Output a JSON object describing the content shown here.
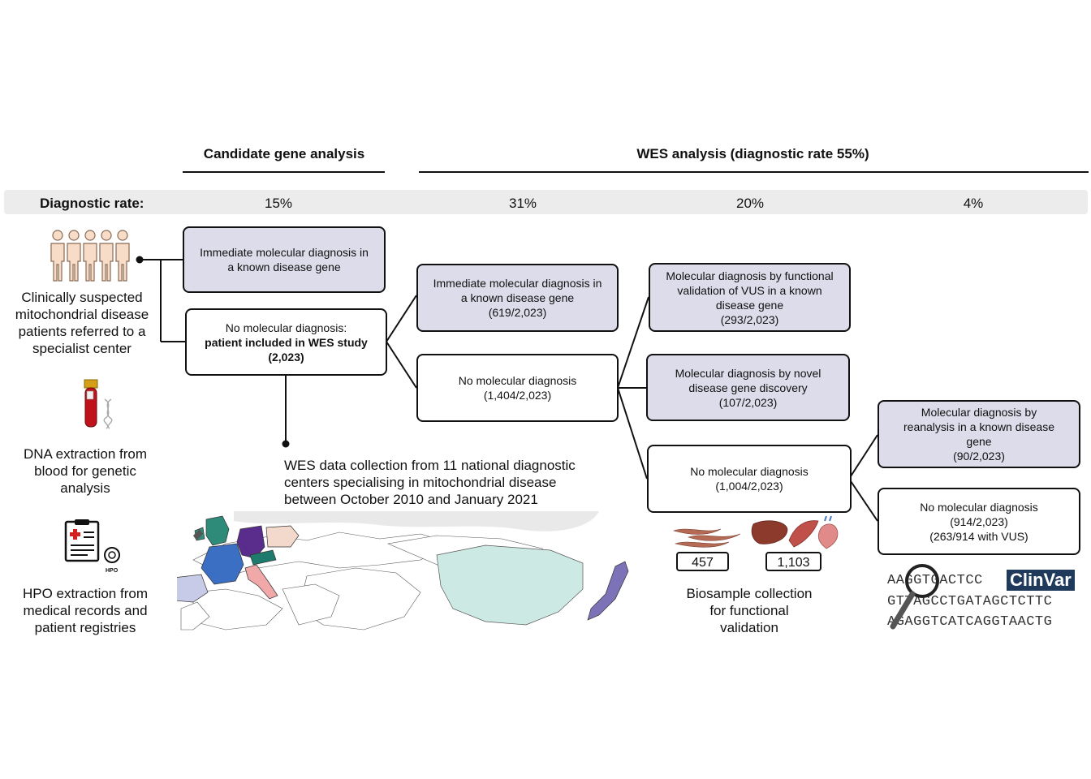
{
  "headers": {
    "candidate": "Candidate gene analysis",
    "wes": "WES analysis (diagnostic rate 55%)"
  },
  "rates": {
    "label": "Diagnostic rate:",
    "values": [
      "15%",
      "31%",
      "20%",
      "4%"
    ]
  },
  "left_column": {
    "patients": [
      "Clinically suspected",
      "mitochondrial disease",
      "patients referred to a",
      "specialist center"
    ],
    "dna": [
      "DNA extraction from",
      "blood for genetic",
      "analysis"
    ],
    "hpo": [
      "HPO extraction from",
      "medical records and",
      "patient registries"
    ],
    "hpo_icon_label": "HPO"
  },
  "boxes": {
    "b1": {
      "lines": [
        "Immediate molecular diagnosis in",
        "a known disease gene"
      ]
    },
    "b2": {
      "line1": "No molecular diagnosis:",
      "bold1": "patient included in WES study",
      "bold2": "(2,023)"
    },
    "b3": {
      "lines": [
        "Immediate molecular diagnosis in",
        "a known disease gene",
        "(619/2,023)"
      ]
    },
    "b4": {
      "lines": [
        "No molecular diagnosis",
        "(1,404/2,023)"
      ]
    },
    "b5": {
      "lines": [
        "Molecular diagnosis by functional",
        "validation of VUS in a known",
        "disease gene",
        "(293/2,023)"
      ]
    },
    "b6": {
      "lines": [
        "Molecular diagnosis by novel",
        "disease gene discovery",
        "(107/2,023)"
      ]
    },
    "b7": {
      "lines": [
        "No molecular diagnosis",
        "(1,004/2,023)"
      ]
    },
    "b8": {
      "lines": [
        "Molecular diagnosis by",
        "reanalysis in a known disease",
        "gene",
        "(90/2,023)"
      ]
    },
    "b9": {
      "lines": [
        "No molecular diagnosis",
        "(914/2,023)",
        "(263/914 with VUS)"
      ]
    }
  },
  "wes_collection": [
    "WES data collection from 11 national diagnostic",
    "centers specialising in mitochondrial disease",
    "between October 2010 and January 2021"
  ],
  "biosamples": {
    "counts": [
      "457",
      "1,103"
    ],
    "caption": [
      "Biosample collection",
      "for functional",
      "validation"
    ]
  },
  "reanalysis": {
    "seq": [
      "AAGGTGACTCC",
      "GTTAGCCTGATAGCTCTTC",
      "AGAGGTCATCAGGTAACTG"
    ],
    "clinvar": "ClinVar"
  },
  "colors": {
    "diagnosis_fill": "#dcdcea",
    "rate_band": "#ececec",
    "clinvar_bg": "#1f3a5a",
    "map_china": "#cde9e3",
    "map_uk": "#2e8b7a",
    "map_germany": "#5a2d8c",
    "map_france": "#3a6fc4",
    "map_japan": "#7b72b8"
  }
}
